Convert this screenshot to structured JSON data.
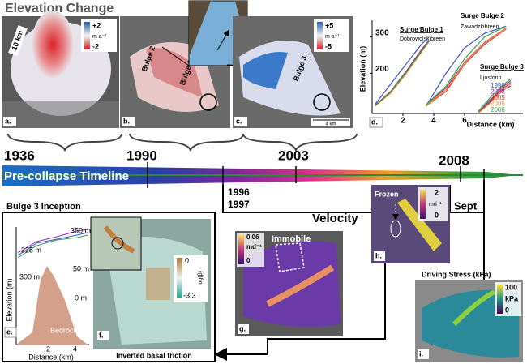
{
  "header": {
    "title": "Elevation Change"
  },
  "panel_a": {
    "label": "a.",
    "scale": "10 km",
    "colorbar": {
      "max": "+2",
      "unit": "m a⁻¹",
      "min": "-2"
    }
  },
  "panel_b": {
    "label": "b.",
    "bulges": [
      "Bulge 2",
      "Bulge 1"
    ]
  },
  "panel_c": {
    "label": "c.",
    "bulge": "Bulge 3",
    "scale": "4 km",
    "colorbar": {
      "max": "+5",
      "unit": "m a⁻¹",
      "min": "-5"
    }
  },
  "panel_d": {
    "label": "d.",
    "y_label": "Elevation (m)",
    "x_label": "Distance (km)",
    "xlim": [
      0,
      9.5
    ],
    "ylim": [
      89,
      335
    ],
    "xticks": [
      2,
      4,
      6
    ],
    "yticks": [
      200,
      300
    ],
    "legend": [
      {
        "name": "1990",
        "color": "#3a4fc8"
      },
      {
        "name": "2003",
        "color": "#9b2fae"
      },
      {
        "name": "2005",
        "color": "#e2342b"
      },
      {
        "name": "2006",
        "color": "#f29a2e"
      },
      {
        "name": "2008",
        "color": "#3aa04a"
      }
    ],
    "groups": [
      {
        "title": "Surge Bulge 1",
        "subtitle": "Dobrowolskibreen",
        "x": [
          0.2,
          1.2,
          2.2,
          3.2,
          3.7
        ],
        "series": [
          [
            115,
            170,
            225,
            280,
            300
          ],
          [
            112,
            150,
            205,
            265,
            292
          ],
          [
            110,
            145,
            200,
            262,
            290
          ],
          [
            110,
            145,
            198,
            258,
            288
          ],
          [
            111,
            148,
            202,
            260,
            289
          ]
        ]
      },
      {
        "title": "Surge Bulge 2",
        "subtitle": "Zawadzkibreen",
        "x": [
          3.5,
          4.8,
          6,
          7.3,
          8.7
        ],
        "series": [
          [
            110,
            200,
            270,
            310,
            330
          ],
          [
            112,
            160,
            230,
            285,
            325
          ],
          [
            110,
            150,
            225,
            280,
            322
          ],
          [
            111,
            155,
            228,
            283,
            324
          ],
          [
            113,
            165,
            240,
            300,
            330
          ]
        ]
      },
      {
        "title": "Surge Bulge 3",
        "subtitle": "Ljosfonn",
        "x": [
          6.9,
          7.6,
          8.3,
          9.0
        ],
        "series": [
          [
            90,
            125,
            150,
            165
          ],
          [
            92,
            120,
            155,
            180
          ],
          [
            91,
            118,
            150,
            175
          ],
          [
            90,
            115,
            145,
            170
          ],
          [
            95,
            130,
            160,
            185
          ]
        ]
      }
    ]
  },
  "timeline": {
    "years": [
      "1936",
      "1990",
      "2003",
      "2008"
    ],
    "label": "Pre-collapse Timeline",
    "interval": [
      "1996",
      "1997"
    ],
    "sept": "Sept"
  },
  "panel_e": {
    "heading": "Bulge 3 Inception",
    "label": "e.",
    "y_label": "Elevation (m)",
    "x_label": "Distance (km)",
    "x_ticks": [
      "2",
      "4"
    ],
    "elev_labels": [
      "350 m",
      "325 m",
      "300 m"
    ],
    "bed_labels": [
      "50 m",
      "0 m"
    ],
    "bedrock": "Bedrock"
  },
  "panel_f": {
    "label": "f.",
    "caption": "Inverted basal friction",
    "colorbar": {
      "max": "0",
      "unit": "log(β)",
      "min": "-3.3"
    }
  },
  "panel_g": {
    "heading": "Velocity",
    "label": "g.",
    "annotation": "Immobile",
    "colorbar": {
      "max": "0.06",
      "unit": "md⁻¹",
      "min": "0"
    }
  },
  "panel_h": {
    "label": "h.",
    "annotation": "Frozen",
    "colorbar": {
      "max": "2",
      "unit": "md⁻¹",
      "min": "0"
    }
  },
  "panel_i": {
    "heading": "Driving Stress (kPa)",
    "label": "i.",
    "colorbar": {
      "max": "100",
      "unit": "kPa",
      "min": "0"
    }
  }
}
